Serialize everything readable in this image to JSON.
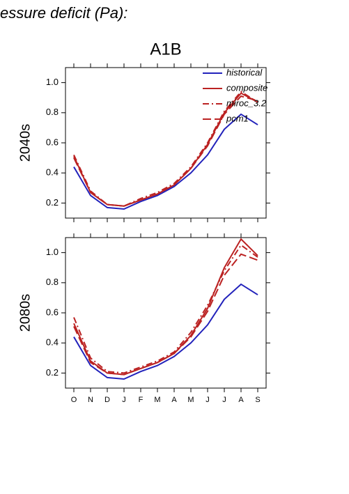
{
  "page_title": "essure deficit (Pa):",
  "chart_data": [
    {
      "type": "line",
      "title": "A1B",
      "ylabel": "2040s",
      "categories": [
        "O",
        "N",
        "D",
        "J",
        "F",
        "M",
        "A",
        "M",
        "J",
        "J",
        "A",
        "S"
      ],
      "xticklabels": false,
      "ylim": [
        0.1,
        1.1
      ],
      "yticks": [
        0.2,
        0.4,
        0.6,
        0.8,
        {
          "value": 1,
          "label": "1.0"
        }
      ],
      "legend": "upper right",
      "series": [
        {
          "name": "historical",
          "color": "#2222bb",
          "dash": "solid",
          "values": [
            0.44,
            0.25,
            0.17,
            0.16,
            0.21,
            0.25,
            0.31,
            0.4,
            0.52,
            0.69,
            0.79,
            0.72
          ]
        },
        {
          "name": "composite",
          "color": "#bb2222",
          "dash": "solid",
          "values": [
            0.51,
            0.27,
            0.19,
            0.18,
            0.22,
            0.26,
            0.32,
            0.43,
            0.59,
            0.8,
            0.93,
            0.87
          ]
        },
        {
          "name": "miroc_3.2",
          "color": "#bb2222",
          "dash": "dashdot",
          "values": [
            0.52,
            0.28,
            0.19,
            0.18,
            0.23,
            0.27,
            0.33,
            0.44,
            0.6,
            0.81,
            0.94,
            0.87
          ]
        },
        {
          "name": "pcm1",
          "color": "#bb2222",
          "dash": "longdash",
          "values": [
            0.5,
            0.27,
            0.19,
            0.18,
            0.22,
            0.26,
            0.32,
            0.43,
            0.58,
            0.79,
            0.91,
            0.88
          ]
        }
      ]
    },
    {
      "type": "line",
      "ylabel": "2080s",
      "categories": [
        "O",
        "N",
        "D",
        "J",
        "F",
        "M",
        "A",
        "M",
        "J",
        "J",
        "A",
        "S"
      ],
      "xticklabels": true,
      "ylim": [
        0.1,
        1.1
      ],
      "yticks": [
        0.2,
        0.4,
        0.6,
        0.8,
        {
          "value": 1,
          "label": "1.0"
        }
      ],
      "series": [
        {
          "color": "#2222bb",
          "dash": "solid",
          "values": [
            0.44,
            0.25,
            0.17,
            0.16,
            0.21,
            0.25,
            0.31,
            0.4,
            0.52,
            0.69,
            0.79,
            0.72
          ]
        },
        {
          "color": "#bb2222",
          "dash": "solid",
          "values": [
            0.53,
            0.28,
            0.2,
            0.19,
            0.23,
            0.27,
            0.33,
            0.45,
            0.63,
            0.9,
            1.09,
            0.98
          ]
        },
        {
          "color": "#bb2222",
          "dash": "dashdot",
          "values": [
            0.57,
            0.3,
            0.21,
            0.2,
            0.24,
            0.28,
            0.34,
            0.47,
            0.65,
            0.88,
            1.05,
            0.97
          ]
        },
        {
          "color": "#bb2222",
          "dash": "longdash",
          "values": [
            0.51,
            0.27,
            0.2,
            0.19,
            0.23,
            0.27,
            0.33,
            0.44,
            0.61,
            0.85,
            0.99,
            0.95
          ]
        }
      ]
    }
  ]
}
